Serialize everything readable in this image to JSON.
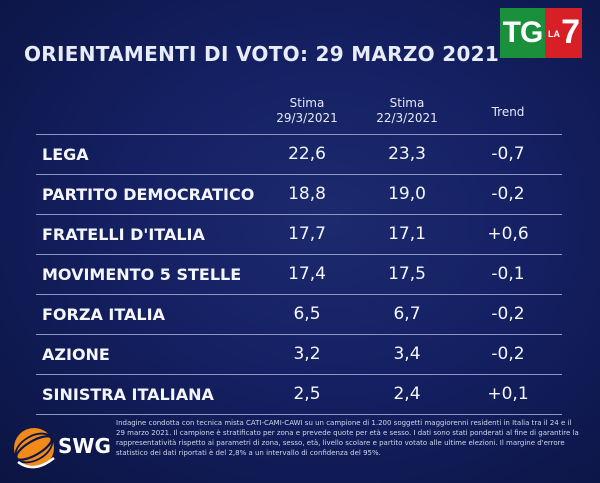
{
  "header": {
    "title": "ORIENTAMENTI DI VOTO: 29 MARZO 2021",
    "logo_left": "TG",
    "logo_la": "LA",
    "logo_seven": "7"
  },
  "colors": {
    "background": "#0d1747",
    "logo_green": "#1a8f3c",
    "logo_red": "#d61f26",
    "swg_orange": "#f28a1a"
  },
  "chart_data": {
    "type": "table",
    "columns": [
      {
        "line1": "Stima",
        "line2": "29/3/2021"
      },
      {
        "line1": "Stima",
        "line2": "22/3/2021"
      },
      {
        "line1": "Trend",
        "line2": ""
      }
    ],
    "rows": [
      {
        "party": "LEGA",
        "v1": "22,6",
        "v2": "23,3",
        "trend": "-0,7"
      },
      {
        "party": "PARTITO DEMOCRATICO",
        "v1": "18,8",
        "v2": "19,0",
        "trend": "-0,2"
      },
      {
        "party": "FRATELLI D'ITALIA",
        "v1": "17,7",
        "v2": "17,1",
        "trend": "+0,6"
      },
      {
        "party": "MOVIMENTO 5 STELLE",
        "v1": "17,4",
        "v2": "17,5",
        "trend": "-0,1"
      },
      {
        "party": "FORZA ITALIA",
        "v1": "6,5",
        "v2": "6,7",
        "trend": "-0,2"
      },
      {
        "party": "AZIONE",
        "v1": "3,2",
        "v2": "3,4",
        "trend": "-0,2"
      },
      {
        "party": "SINISTRA ITALIANA",
        "v1": "2,5",
        "v2": "2,4",
        "trend": "+0,1"
      }
    ]
  },
  "footer": {
    "brand": "SWG",
    "note": "Indagine condotta con tecnica mista CATI-CAMI-CAWI su un campione di 1.200 soggetti maggiorenni residenti in Italia tra il 24 e il 29 marzo 2021. Il campione è stratificato per zona e prevede quote per età e sesso. I dati sono stati ponderati al fine di garantire la rappresentatività rispetto ai parametri di zona, sesso, età, livello scolare e partito votato alle ultime elezioni. Il margine d'errore statistico dei dati riportati è del 2,8% a un intervallo di confidenza del 95%."
  }
}
